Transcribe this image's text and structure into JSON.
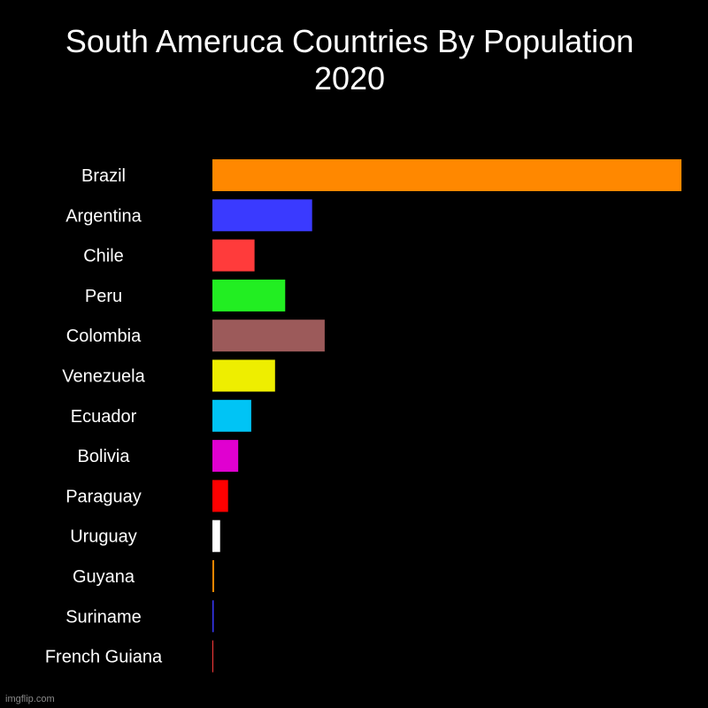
{
  "chart_data": {
    "type": "bar",
    "orientation": "horizontal",
    "title": "South Ameruca Countries By Population\n2020",
    "categories": [
      "Brazil",
      "Argentina",
      "Chile",
      "Peru",
      "Colombia",
      "Venezuela",
      "Ecuador",
      "Bolivia",
      "Paraguay",
      "Uruguay",
      "Guyana",
      "Suriname",
      "French Guiana"
    ],
    "values": [
      212.6,
      45.2,
      19.1,
      33.0,
      50.9,
      28.4,
      17.6,
      11.7,
      7.1,
      3.5,
      0.79,
      0.59,
      0.3
    ],
    "colors": [
      "#ff8800",
      "#3a3aff",
      "#ff3b3b",
      "#22ee22",
      "#9c5a5a",
      "#eeee00",
      "#00c4f5",
      "#e000d0",
      "#ff0000",
      "#ffffff",
      "#ff8800",
      "#3a3aff",
      "#ff3b3b"
    ],
    "xlim": [
      0,
      212.6
    ],
    "grid": false,
    "legend": "none"
  },
  "watermark": "imgflip.com"
}
